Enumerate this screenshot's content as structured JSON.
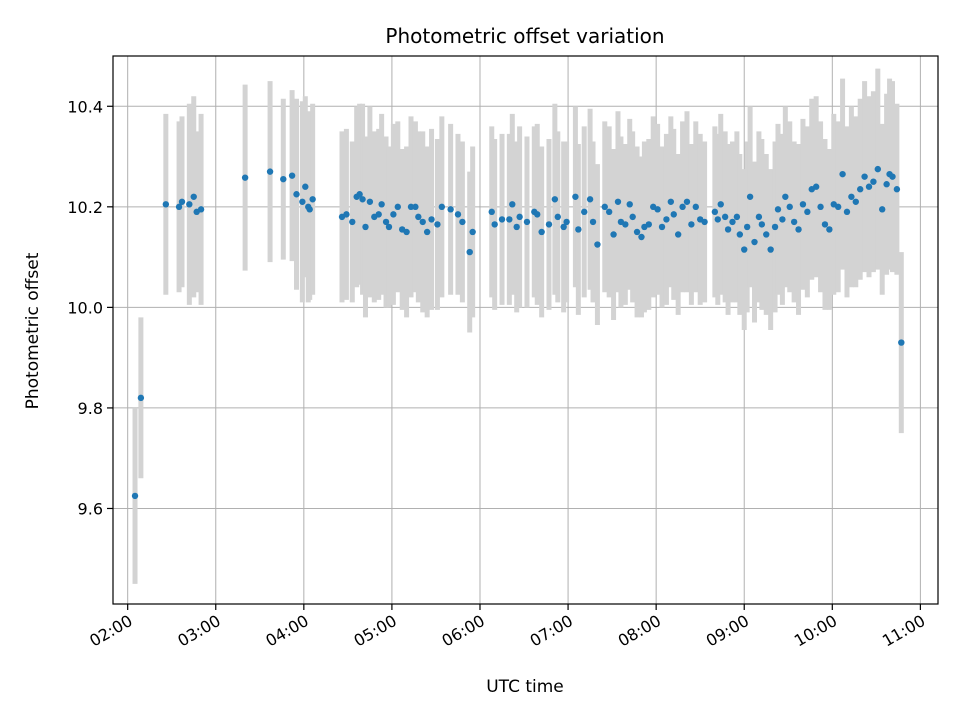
{
  "chart_data": {
    "type": "scatter",
    "title": "Photometric offset variation",
    "xlabel": "UTC time",
    "ylabel": "Photometric offset",
    "x_ticks": [
      "02:00",
      "03:00",
      "04:00",
      "05:00",
      "06:00",
      "07:00",
      "08:00",
      "09:00",
      "10:00",
      "11:00"
    ],
    "y_ticks": [
      "9.6",
      "9.8",
      "10.0",
      "10.2",
      "10.4"
    ],
    "xlim": [
      "01:50",
      "11:12"
    ],
    "ylim": [
      9.41,
      10.5
    ],
    "grid": true,
    "colors": {
      "points": "#1f77b4",
      "errorbars": "#d3d3d3",
      "grid": "#b0b0b0"
    },
    "points": [
      {
        "t": "02:05",
        "y": 9.625,
        "e": 0.175
      },
      {
        "t": "02:09",
        "y": 9.82,
        "e": 0.16
      },
      {
        "t": "02:26",
        "y": 10.205,
        "e": 0.18
      },
      {
        "t": "02:35",
        "y": 10.2,
        "e": 0.17
      },
      {
        "t": "02:37",
        "y": 10.21,
        "e": 0.17
      },
      {
        "t": "02:42",
        "y": 10.205,
        "e": 0.2
      },
      {
        "t": "02:45",
        "y": 10.22,
        "e": 0.2
      },
      {
        "t": "02:47",
        "y": 10.19,
        "e": 0.16
      },
      {
        "t": "02:50",
        "y": 10.195,
        "e": 0.19
      },
      {
        "t": "03:20",
        "y": 10.258,
        "e": 0.185
      },
      {
        "t": "03:37",
        "y": 10.27,
        "e": 0.18
      },
      {
        "t": "03:46",
        "y": 10.255,
        "e": 0.16
      },
      {
        "t": "03:52",
        "y": 10.262,
        "e": 0.17
      },
      {
        "t": "03:55",
        "y": 10.225,
        "e": 0.19
      },
      {
        "t": "03:59",
        "y": 10.21,
        "e": 0.2
      },
      {
        "t": "04:01",
        "y": 10.24,
        "e": 0.18
      },
      {
        "t": "04:03",
        "y": 10.2,
        "e": 0.19
      },
      {
        "t": "04:04",
        "y": 10.195,
        "e": 0.18
      },
      {
        "t": "04:06",
        "y": 10.215,
        "e": 0.19
      },
      {
        "t": "04:26",
        "y": 10.18,
        "e": 0.17
      },
      {
        "t": "04:29",
        "y": 10.185,
        "e": 0.17
      },
      {
        "t": "04:33",
        "y": 10.17,
        "e": 0.16
      },
      {
        "t": "04:36",
        "y": 10.22,
        "e": 0.18
      },
      {
        "t": "04:38",
        "y": 10.225,
        "e": 0.18
      },
      {
        "t": "04:40",
        "y": 10.215,
        "e": 0.19
      },
      {
        "t": "04:42",
        "y": 10.16,
        "e": 0.18
      },
      {
        "t": "04:45",
        "y": 10.21,
        "e": 0.19
      },
      {
        "t": "04:48",
        "y": 10.18,
        "e": 0.17
      },
      {
        "t": "04:51",
        "y": 10.185,
        "e": 0.17
      },
      {
        "t": "04:53",
        "y": 10.205,
        "e": 0.18
      },
      {
        "t": "04:56",
        "y": 10.17,
        "e": 0.17
      },
      {
        "t": "04:58",
        "y": 10.16,
        "e": 0.16
      },
      {
        "t": "05:01",
        "y": 10.185,
        "e": 0.18
      },
      {
        "t": "05:04",
        "y": 10.2,
        "e": 0.17
      },
      {
        "t": "05:07",
        "y": 10.155,
        "e": 0.16
      },
      {
        "t": "05:10",
        "y": 10.15,
        "e": 0.17
      },
      {
        "t": "05:13",
        "y": 10.2,
        "e": 0.18
      },
      {
        "t": "05:16",
        "y": 10.2,
        "e": 0.17
      },
      {
        "t": "05:18",
        "y": 10.18,
        "e": 0.17
      },
      {
        "t": "05:21",
        "y": 10.17,
        "e": 0.18
      },
      {
        "t": "05:24",
        "y": 10.15,
        "e": 0.17
      },
      {
        "t": "05:27",
        "y": 10.175,
        "e": 0.18
      },
      {
        "t": "05:31",
        "y": 10.165,
        "e": 0.17
      },
      {
        "t": "05:34",
        "y": 10.2,
        "e": 0.18
      },
      {
        "t": "05:40",
        "y": 10.195,
        "e": 0.17
      },
      {
        "t": "05:45",
        "y": 10.185,
        "e": 0.16
      },
      {
        "t": "05:48",
        "y": 10.17,
        "e": 0.16
      },
      {
        "t": "05:53",
        "y": 10.11,
        "e": 0.16
      },
      {
        "t": "05:55",
        "y": 10.15,
        "e": 0.17
      },
      {
        "t": "06:08",
        "y": 10.19,
        "e": 0.17
      },
      {
        "t": "06:10",
        "y": 10.165,
        "e": 0.17
      },
      {
        "t": "06:15",
        "y": 10.175,
        "e": 0.17
      },
      {
        "t": "06:20",
        "y": 10.175,
        "e": 0.17
      },
      {
        "t": "06:22",
        "y": 10.205,
        "e": 0.18
      },
      {
        "t": "06:25",
        "y": 10.16,
        "e": 0.17
      },
      {
        "t": "06:27",
        "y": 10.18,
        "e": 0.18
      },
      {
        "t": "06:32",
        "y": 10.17,
        "e": 0.17
      },
      {
        "t": "06:37",
        "y": 10.19,
        "e": 0.17
      },
      {
        "t": "06:39",
        "y": 10.185,
        "e": 0.18
      },
      {
        "t": "06:42",
        "y": 10.15,
        "e": 0.17
      },
      {
        "t": "06:47",
        "y": 10.165,
        "e": 0.17
      },
      {
        "t": "06:51",
        "y": 10.215,
        "e": 0.19
      },
      {
        "t": "06:53",
        "y": 10.18,
        "e": 0.17
      },
      {
        "t": "06:57",
        "y": 10.16,
        "e": 0.17
      },
      {
        "t": "06:59",
        "y": 10.17,
        "e": 0.16
      },
      {
        "t": "07:05",
        "y": 10.22,
        "e": 0.18
      },
      {
        "t": "07:07",
        "y": 10.155,
        "e": 0.17
      },
      {
        "t": "07:11",
        "y": 10.19,
        "e": 0.17
      },
      {
        "t": "07:15",
        "y": 10.215,
        "e": 0.18
      },
      {
        "t": "07:17",
        "y": 10.17,
        "e": 0.16
      },
      {
        "t": "07:20",
        "y": 10.125,
        "e": 0.16
      },
      {
        "t": "07:25",
        "y": 10.2,
        "e": 0.17
      },
      {
        "t": "07:28",
        "y": 10.19,
        "e": 0.17
      },
      {
        "t": "07:31",
        "y": 10.145,
        "e": 0.17
      },
      {
        "t": "07:34",
        "y": 10.21,
        "e": 0.18
      },
      {
        "t": "07:36",
        "y": 10.17,
        "e": 0.17
      },
      {
        "t": "07:39",
        "y": 10.165,
        "e": 0.16
      },
      {
        "t": "07:42",
        "y": 10.205,
        "e": 0.17
      },
      {
        "t": "07:44",
        "y": 10.18,
        "e": 0.17
      },
      {
        "t": "07:47",
        "y": 10.15,
        "e": 0.17
      },
      {
        "t": "07:50",
        "y": 10.14,
        "e": 0.16
      },
      {
        "t": "07:52",
        "y": 10.16,
        "e": 0.17
      },
      {
        "t": "07:55",
        "y": 10.165,
        "e": 0.17
      },
      {
        "t": "07:58",
        "y": 10.2,
        "e": 0.18
      },
      {
        "t": "08:01",
        "y": 10.195,
        "e": 0.17
      },
      {
        "t": "08:04",
        "y": 10.16,
        "e": 0.16
      },
      {
        "t": "08:07",
        "y": 10.175,
        "e": 0.17
      },
      {
        "t": "08:10",
        "y": 10.21,
        "e": 0.17
      },
      {
        "t": "08:12",
        "y": 10.185,
        "e": 0.17
      },
      {
        "t": "08:15",
        "y": 10.145,
        "e": 0.16
      },
      {
        "t": "08:18",
        "y": 10.2,
        "e": 0.17
      },
      {
        "t": "08:21",
        "y": 10.21,
        "e": 0.18
      },
      {
        "t": "08:24",
        "y": 10.165,
        "e": 0.16
      },
      {
        "t": "08:27",
        "y": 10.2,
        "e": 0.17
      },
      {
        "t": "08:30",
        "y": 10.175,
        "e": 0.17
      },
      {
        "t": "08:33",
        "y": 10.17,
        "e": 0.16
      },
      {
        "t": "08:40",
        "y": 10.19,
        "e": 0.17
      },
      {
        "t": "08:42",
        "y": 10.175,
        "e": 0.17
      },
      {
        "t": "08:44",
        "y": 10.205,
        "e": 0.18
      },
      {
        "t": "08:47",
        "y": 10.18,
        "e": 0.17
      },
      {
        "t": "08:49",
        "y": 10.155,
        "e": 0.17
      },
      {
        "t": "08:52",
        "y": 10.17,
        "e": 0.16
      },
      {
        "t": "08:55",
        "y": 10.18,
        "e": 0.17
      },
      {
        "t": "08:57",
        "y": 10.145,
        "e": 0.16
      },
      {
        "t": "09:00",
        "y": 10.115,
        "e": 0.16
      },
      {
        "t": "09:02",
        "y": 10.16,
        "e": 0.17
      },
      {
        "t": "09:04",
        "y": 10.22,
        "e": 0.18
      },
      {
        "t": "09:07",
        "y": 10.13,
        "e": 0.16
      },
      {
        "t": "09:10",
        "y": 10.18,
        "e": 0.17
      },
      {
        "t": "09:12",
        "y": 10.165,
        "e": 0.17
      },
      {
        "t": "09:15",
        "y": 10.145,
        "e": 0.16
      },
      {
        "t": "09:18",
        "y": 10.115,
        "e": 0.16
      },
      {
        "t": "09:21",
        "y": 10.16,
        "e": 0.17
      },
      {
        "t": "09:23",
        "y": 10.195,
        "e": 0.17
      },
      {
        "t": "09:26",
        "y": 10.175,
        "e": 0.17
      },
      {
        "t": "09:28",
        "y": 10.22,
        "e": 0.18
      },
      {
        "t": "09:31",
        "y": 10.2,
        "e": 0.17
      },
      {
        "t": "09:34",
        "y": 10.17,
        "e": 0.16
      },
      {
        "t": "09:37",
        "y": 10.155,
        "e": 0.17
      },
      {
        "t": "09:40",
        "y": 10.205,
        "e": 0.17
      },
      {
        "t": "09:43",
        "y": 10.19,
        "e": 0.17
      },
      {
        "t": "09:46",
        "y": 10.235,
        "e": 0.18
      },
      {
        "t": "09:49",
        "y": 10.24,
        "e": 0.18
      },
      {
        "t": "09:52",
        "y": 10.2,
        "e": 0.17
      },
      {
        "t": "09:55",
        "y": 10.165,
        "e": 0.17
      },
      {
        "t": "09:58",
        "y": 10.155,
        "e": 0.16
      },
      {
        "t": "10:01",
        "y": 10.205,
        "e": 0.18
      },
      {
        "t": "10:04",
        "y": 10.2,
        "e": 0.17
      },
      {
        "t": "10:07",
        "y": 10.265,
        "e": 0.19
      },
      {
        "t": "10:10",
        "y": 10.19,
        "e": 0.17
      },
      {
        "t": "10:13",
        "y": 10.22,
        "e": 0.18
      },
      {
        "t": "10:16",
        "y": 10.21,
        "e": 0.17
      },
      {
        "t": "10:19",
        "y": 10.235,
        "e": 0.18
      },
      {
        "t": "10:22",
        "y": 10.26,
        "e": 0.19
      },
      {
        "t": "10:25",
        "y": 10.24,
        "e": 0.18
      },
      {
        "t": "10:28",
        "y": 10.25,
        "e": 0.18
      },
      {
        "t": "10:31",
        "y": 10.275,
        "e": 0.2
      },
      {
        "t": "10:34",
        "y": 10.195,
        "e": 0.17
      },
      {
        "t": "10:37",
        "y": 10.245,
        "e": 0.18
      },
      {
        "t": "10:39",
        "y": 10.265,
        "e": 0.19
      },
      {
        "t": "10:41",
        "y": 10.26,
        "e": 0.19
      },
      {
        "t": "10:44",
        "y": 10.235,
        "e": 0.17
      },
      {
        "t": "10:47",
        "y": 9.93,
        "e": 0.18
      }
    ]
  }
}
